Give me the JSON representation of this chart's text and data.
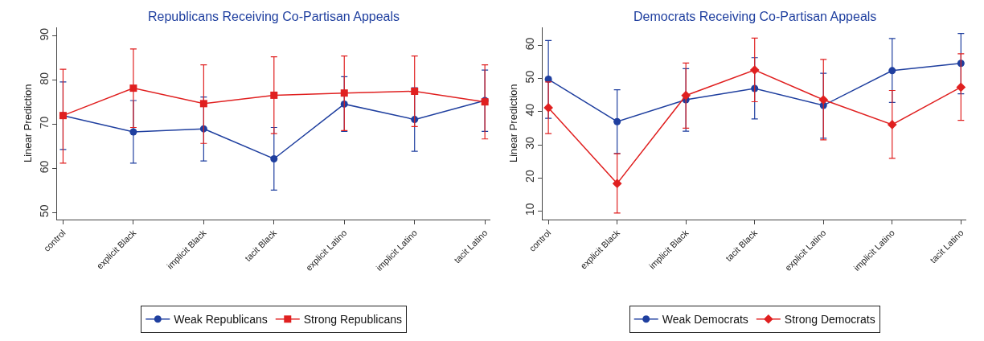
{
  "chart_data": [
    {
      "type": "line",
      "title": "Republicans Receiving Co-Partisan Appeals",
      "ylabel": "Linear Prediction",
      "categories": [
        "control",
        "explicit Black",
        "implicit Black",
        "tacit Black",
        "explicit Latino",
        "implicit Latino",
        "tacit Latino"
      ],
      "ylim": [
        48.5,
        92
      ],
      "yticks": [
        50,
        60,
        70,
        80,
        90
      ],
      "legend": "bottom",
      "series": [
        {
          "name": "Weak Republicans",
          "color": "#1f3f9f",
          "marker": "circle",
          "values": [
            72,
            68.3,
            69,
            62.2,
            74.6,
            71.1,
            75.4
          ],
          "errors": [
            [
              64.3,
              79.6
            ],
            [
              61.2,
              75.4
            ],
            [
              61.7,
              76.2
            ],
            [
              55.1,
              69.3
            ],
            [
              68.4,
              80.8
            ],
            [
              63.9,
              78.3
            ],
            [
              68.4,
              82.3
            ]
          ]
        },
        {
          "name": "Strong Republicans",
          "color": "#e02020",
          "marker": "square",
          "values": [
            72,
            78.2,
            74.7,
            76.6,
            77.1,
            77.5,
            75.1
          ],
          "errors": [
            [
              61.2,
              82.5
            ],
            [
              69.3,
              87.1
            ],
            [
              65.7,
              83.5
            ],
            [
              67.9,
              85.3
            ],
            [
              68.6,
              85.5
            ],
            [
              69.5,
              85.5
            ],
            [
              66.7,
              83.5
            ]
          ]
        }
      ]
    },
    {
      "type": "line",
      "title": "Democrats Receiving Co-Partisan Appeals",
      "ylabel": "Linear Prediction",
      "categories": [
        "control",
        "explicit Black",
        "implicit Black",
        "tacit Black",
        "explicit Latino",
        "implicit Latino",
        "tacit Latino"
      ],
      "ylim": [
        7.5,
        65.5
      ],
      "yticks": [
        10,
        20,
        30,
        40,
        50,
        60
      ],
      "legend": "bottom",
      "series": [
        {
          "name": "Weak Democrats",
          "color": "#1f3f9f",
          "marker": "circle",
          "values": [
            49.8,
            37,
            43.6,
            47,
            41.9,
            52.4,
            54.6
          ],
          "errors": [
            [
              38,
              61.5
            ],
            [
              27.4,
              46.6
            ],
            [
              34.1,
              53
            ],
            [
              37.8,
              56.3
            ],
            [
              32,
              51.6
            ],
            [
              42.8,
              62.1
            ],
            [
              45.4,
              63.6
            ]
          ]
        },
        {
          "name": "Strong Democrats",
          "color": "#e02020",
          "marker": "diamond",
          "values": [
            41.2,
            18.3,
            44.9,
            52.6,
            43.6,
            36.1,
            47.4
          ],
          "errors": [
            [
              33.4,
              49
            ],
            [
              9.4,
              27.3
            ],
            [
              35,
              54.7
            ],
            [
              43,
              62.2
            ],
            [
              31.5,
              55.8
            ],
            [
              25.9,
              46.4
            ],
            [
              37.4,
              57.5
            ]
          ]
        }
      ]
    }
  ]
}
